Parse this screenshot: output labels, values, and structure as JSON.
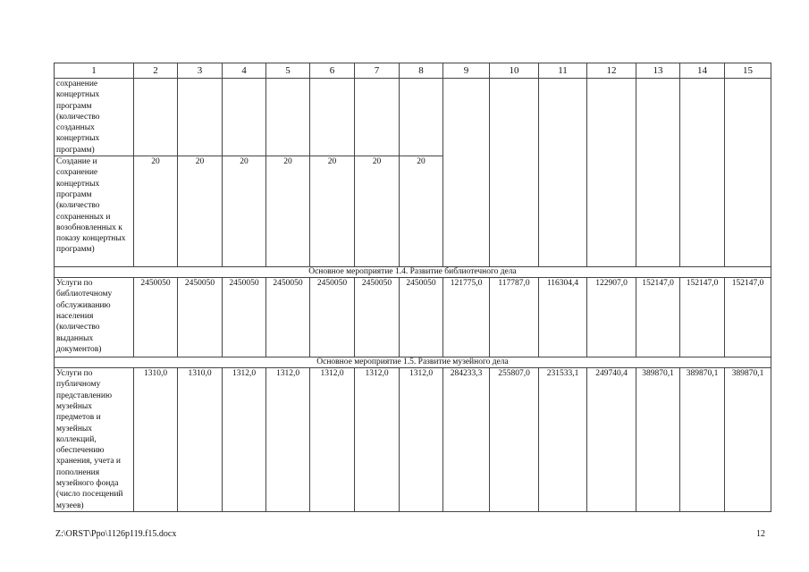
{
  "table": {
    "headers": [
      "1",
      "2",
      "3",
      "4",
      "5",
      "6",
      "7",
      "8",
      "9",
      "10",
      "11",
      "12",
      "13",
      "14",
      "15"
    ],
    "rows": [
      {
        "desc": "сохранение концертных программ (количество созданных концертных программ)"
      },
      {
        "desc": "Создание и сохранение концертных программ (количество сохраненных и возобновленных к показу концертных программ)",
        "values": [
          "20",
          "20",
          "20",
          "20",
          "20",
          "20",
          "20"
        ]
      },
      {
        "section": "Основное мероприятие 1.4. Развитие библиотечного дела"
      },
      {
        "desc": "Услуги по библиотечному обслуживанию населения (количество выданных документов)",
        "values": [
          "2450050",
          "2450050",
          "2450050",
          "2450050",
          "2450050",
          "2450050",
          "2450050",
          "121775,0",
          "117787,0",
          "116304,4",
          "122907,0",
          "152147,0",
          "152147,0",
          "152147,0"
        ]
      },
      {
        "section": "Основное мероприятие 1.5. Развитие музейного дела"
      },
      {
        "desc": "Услуги по публичному представлению музейных предметов и музейных коллекций, обеспечению хранения, учета и пополнения музейного фонда (число посещений музеев)",
        "values": [
          "1310,0",
          "1310,0",
          "1312,0",
          "1312,0",
          "1312,0",
          "1312,0",
          "1312,0",
          "284233,3",
          "255807,0",
          "231533,1",
          "249740,4",
          "389870,1",
          "389870,1",
          "389870,1"
        ]
      }
    ]
  },
  "footer": {
    "path": "Z:\\ORST\\Ppo\\1126p119.f15.docx",
    "page_number": "12"
  }
}
